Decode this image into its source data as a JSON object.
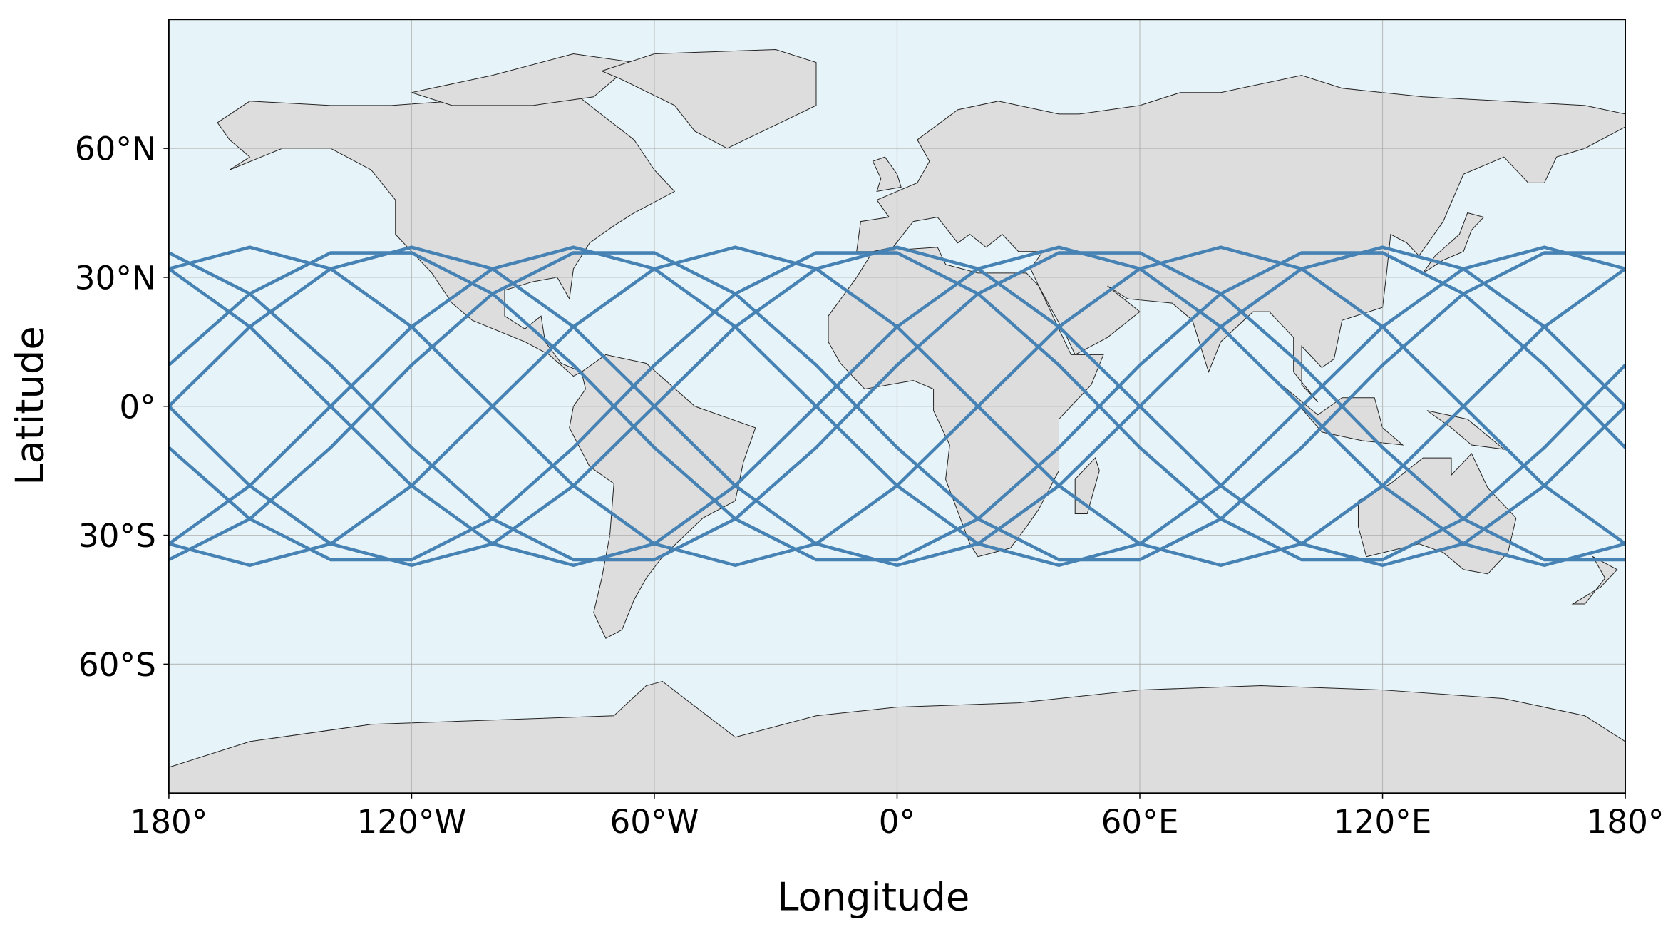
{
  "chart_data": {
    "type": "line",
    "xlabel": "Longitude",
    "ylabel": "Latitude",
    "xlim": [
      -180,
      180
    ],
    "ylim": [
      -90,
      90
    ],
    "xticks": [
      {
        "value": -180,
        "label": "180°"
      },
      {
        "value": -120,
        "label": "120°W"
      },
      {
        "value": -60,
        "label": "60°W"
      },
      {
        "value": 0,
        "label": "0°"
      },
      {
        "value": 60,
        "label": "60°E"
      },
      {
        "value": 120,
        "label": "120°E"
      },
      {
        "value": 180,
        "label": "180°"
      }
    ],
    "yticks": [
      {
        "value": 60,
        "label": "60°N"
      },
      {
        "value": 30,
        "label": "30°N"
      },
      {
        "value": 0,
        "label": "0°"
      },
      {
        "value": -30,
        "label": "30°S"
      },
      {
        "value": -60,
        "label": "60°S"
      }
    ],
    "grid": true,
    "color": "#4682b4",
    "x": [
      -180,
      -160,
      -140,
      -120,
      -100,
      -80,
      -60,
      -40,
      -20,
      0,
      20,
      40,
      60,
      80,
      100,
      120,
      140,
      160,
      180
    ],
    "series": [
      {
        "values": [
          0,
          18.5,
          32,
          37,
          32,
          18.5,
          0,
          -18.5,
          -32,
          -37,
          -32,
          -18.5,
          0,
          18.5,
          32,
          37,
          32,
          18.5,
          0
        ]
      },
      {
        "values": [
          32,
          37,
          32,
          18.5,
          0,
          -18.5,
          -32,
          -37,
          -32,
          -18.5,
          0,
          18.5,
          32,
          37,
          32,
          18.5,
          0,
          -18.5,
          -32
        ]
      },
      {
        "values": [
          32,
          18.5,
          0,
          -18.5,
          -32,
          -37,
          -32,
          -18.5,
          0,
          18.5,
          32,
          37,
          32,
          18.5,
          0,
          -18.5,
          -32,
          -37,
          -32
        ]
      },
      {
        "values": [
          0,
          -18.5,
          -32,
          -37,
          -32,
          -18.5,
          0,
          18.5,
          32,
          37,
          32,
          18.5,
          0,
          -18.5,
          -32,
          -37,
          -32,
          -18.5,
          0
        ]
      },
      {
        "values": [
          -32,
          -37,
          -32,
          -18.5,
          0,
          18.5,
          32,
          37,
          32,
          18.5,
          0,
          -18.5,
          -32,
          -37,
          -32,
          -18.5,
          0,
          18.5,
          32
        ]
      },
      {
        "values": [
          -32,
          -18.5,
          0,
          18.5,
          32,
          37,
          32,
          18.5,
          0,
          -18.5,
          -32,
          -37,
          -32,
          -18.5,
          0,
          18.5,
          32,
          37,
          32
        ]
      },
      {
        "values": [
          9.6,
          26.2,
          35.7,
          35.7,
          26.2,
          9.6,
          -9.6,
          -26.2,
          -35.7,
          -35.7,
          -26.2,
          -9.6,
          9.6,
          26.2,
          35.7,
          35.7,
          26.2,
          9.6,
          -9.6
        ]
      },
      {
        "values": [
          35.7,
          26.2,
          9.6,
          -9.6,
          -26.2,
          -35.7,
          -35.7,
          -26.2,
          -9.6,
          9.6,
          26.2,
          35.7,
          35.7,
          26.2,
          9.6,
          -9.6,
          -26.2,
          -35.7,
          -35.7
        ]
      },
      {
        "values": [
          -9.6,
          -26.2,
          -35.7,
          -35.7,
          -26.2,
          -9.6,
          9.6,
          26.2,
          35.7,
          35.7,
          26.2,
          9.6,
          -9.6,
          -26.2,
          -35.7,
          -35.7,
          -26.2,
          -9.6,
          9.6
        ]
      },
      {
        "values": [
          -35.7,
          -26.2,
          -9.6,
          9.6,
          26.2,
          35.7,
          35.7,
          26.2,
          9.6,
          -9.6,
          -26.2,
          -35.7,
          -35.7,
          -26.2,
          -9.6,
          9.6,
          26.2,
          35.7,
          35.7
        ]
      }
    ]
  }
}
